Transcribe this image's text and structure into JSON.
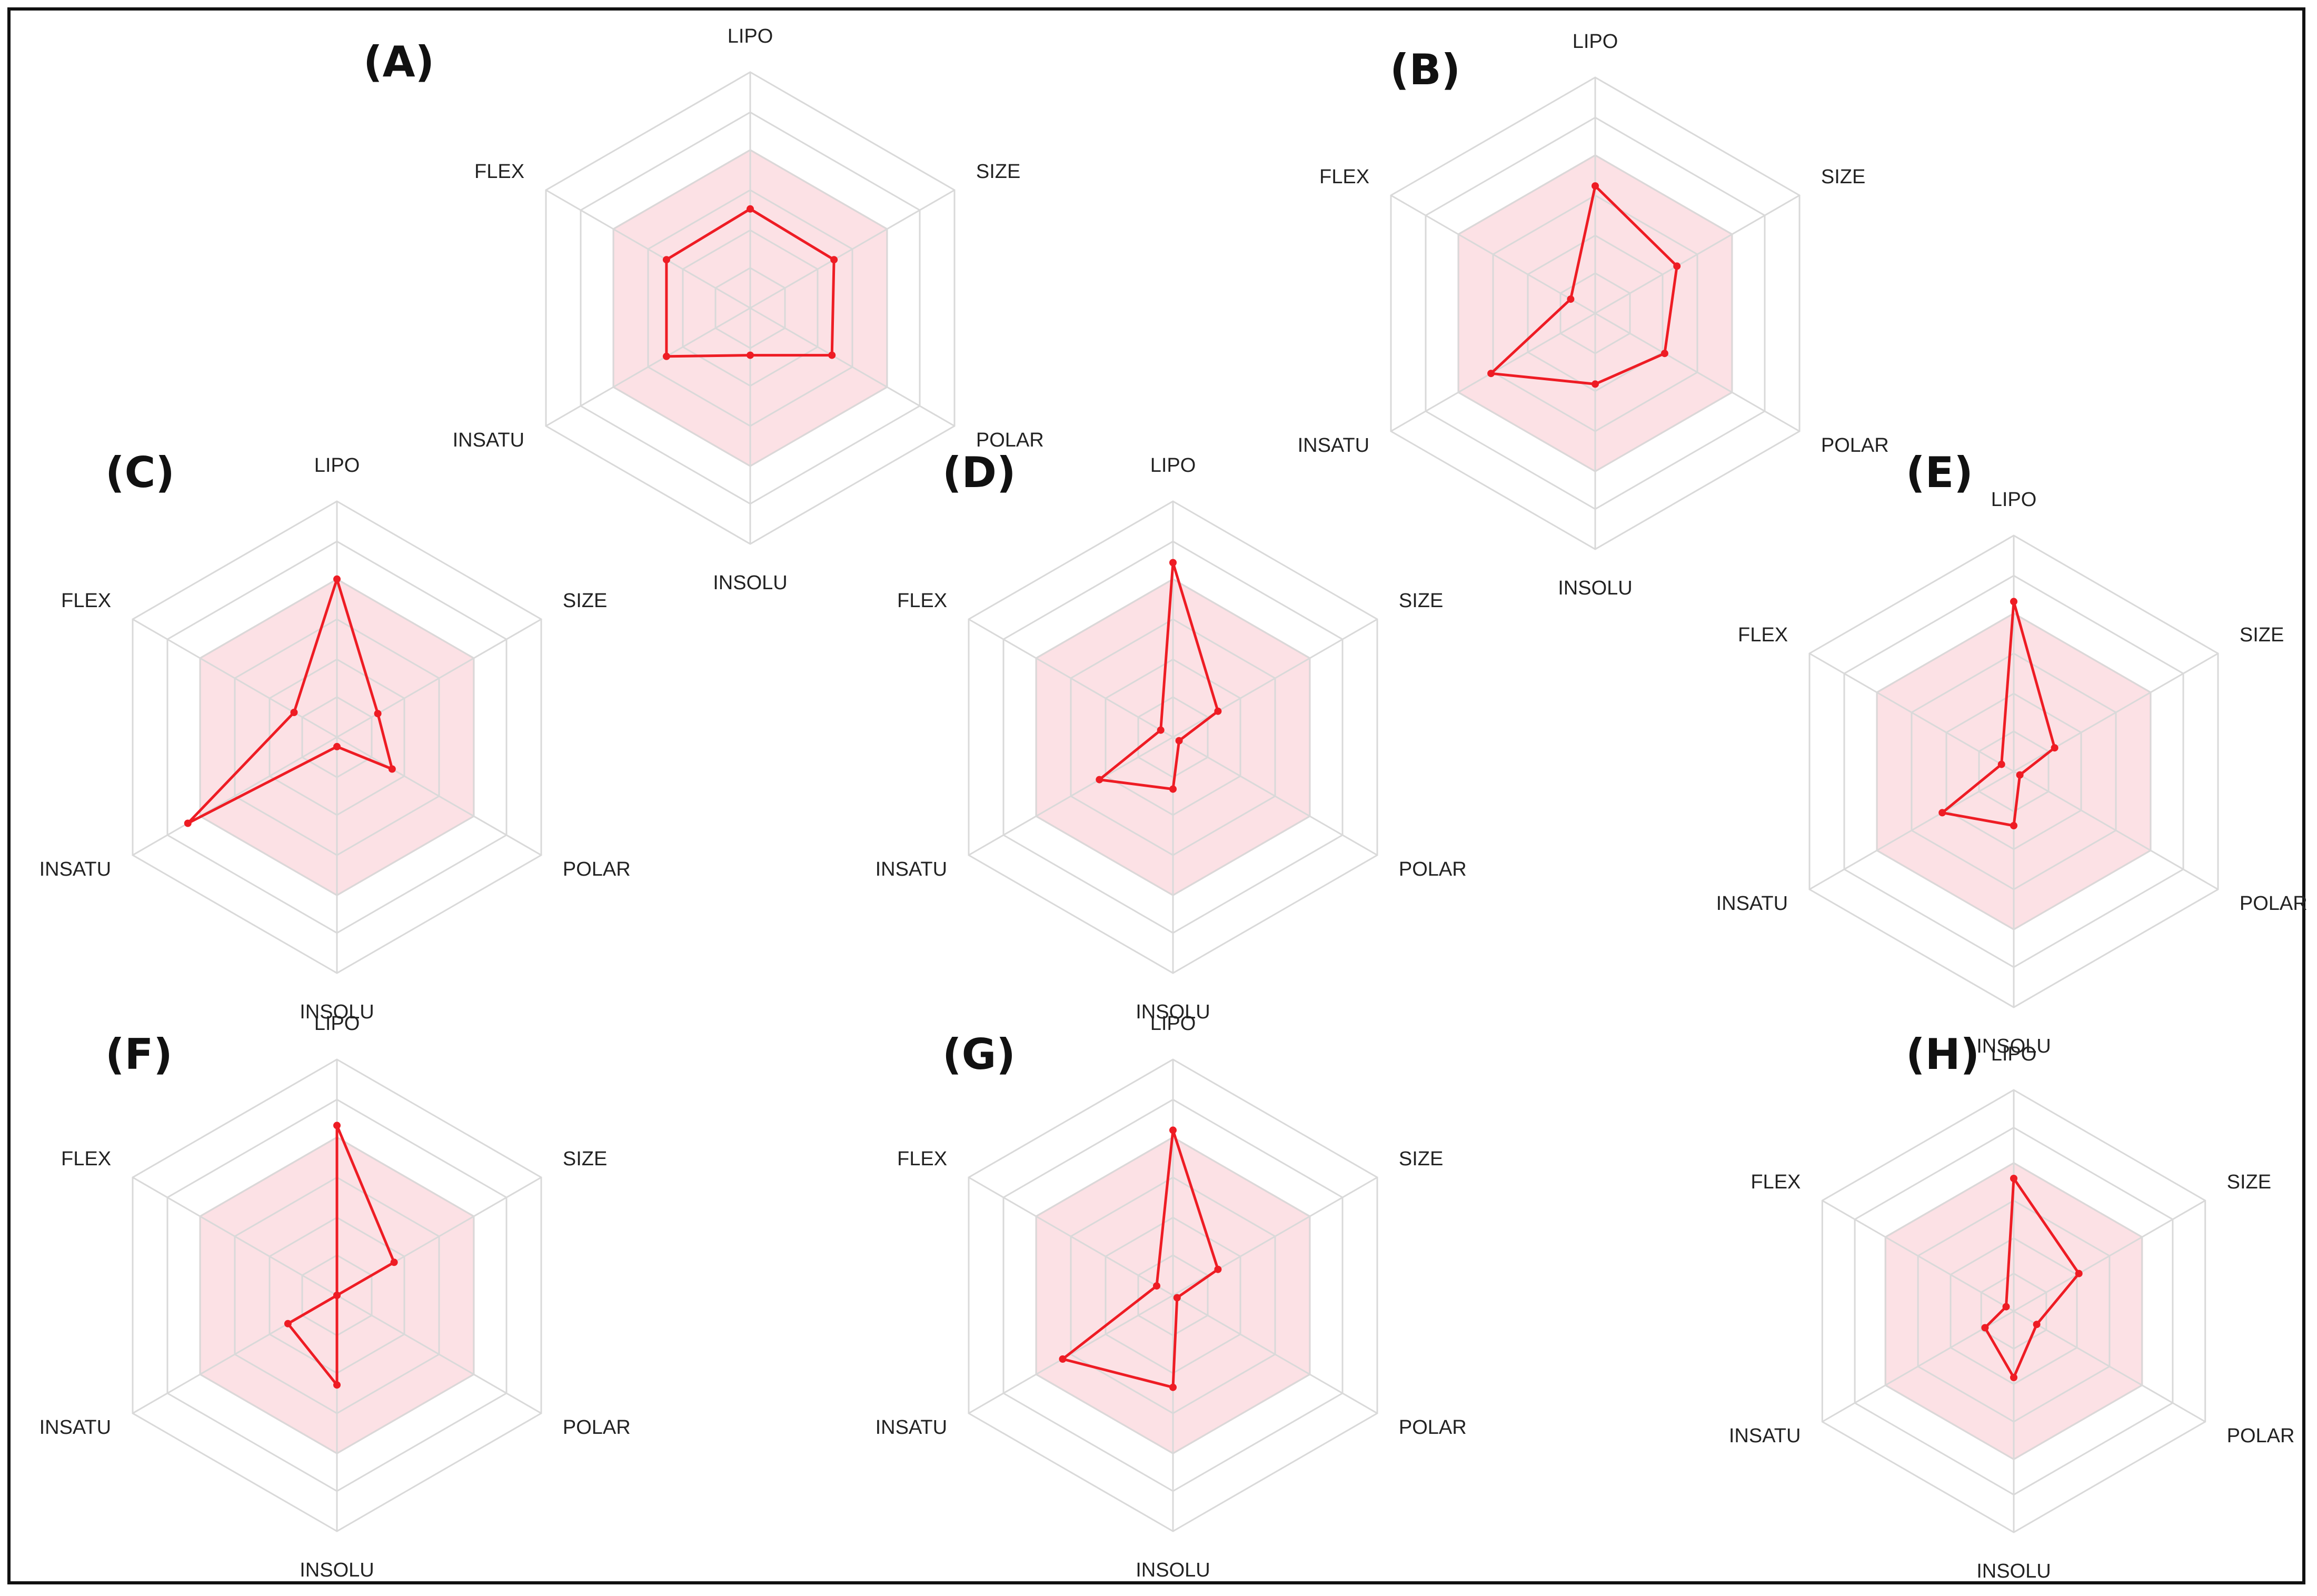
{
  "figure": {
    "description_axes": [
      "LIPO",
      "SIZE",
      "POLAR",
      "INSOLU",
      "INSATU",
      "FLEX"
    ],
    "colors": {
      "frame": "#111111",
      "grid": "#d9d9d9",
      "optimal_fill": "#f9c9cf",
      "optimal_stroke": "#f4a9b1",
      "series": "#ee1c24",
      "text": "#222222"
    }
  },
  "chart_data": [
    {
      "type": "radar",
      "title": "(A)",
      "axes": [
        "LIPO",
        "SIZE",
        "POLAR",
        "INSOLU",
        "INSATU",
        "FLEX"
      ],
      "rmax": 1,
      "optimal_range": 0.67,
      "values": [
        0.42,
        0.41,
        0.4,
        0.2,
        0.41,
        0.41
      ]
    },
    {
      "type": "radar",
      "title": "(B)",
      "axes": [
        "LIPO",
        "SIZE",
        "POLAR",
        "INSOLU",
        "INSATU",
        "FLEX"
      ],
      "rmax": 1,
      "optimal_range": 0.67,
      "values": [
        0.54,
        0.4,
        0.34,
        0.3,
        0.51,
        0.12
      ]
    },
    {
      "type": "radar",
      "title": "(C)",
      "axes": [
        "LIPO",
        "SIZE",
        "POLAR",
        "INSOLU",
        "INSATU",
        "FLEX"
      ],
      "rmax": 1,
      "optimal_range": 0.67,
      "values": [
        0.67,
        0.2,
        0.27,
        0.04,
        0.73,
        0.21
      ]
    },
    {
      "type": "radar",
      "title": "(D)",
      "axes": [
        "LIPO",
        "SIZE",
        "POLAR",
        "INSOLU",
        "INSATU",
        "FLEX"
      ],
      "rmax": 1,
      "optimal_range": 0.67,
      "values": [
        0.74,
        0.22,
        0.03,
        0.22,
        0.36,
        0.06
      ]
    },
    {
      "type": "radar",
      "title": "(E)",
      "axes": [
        "LIPO",
        "SIZE",
        "POLAR",
        "INSOLU",
        "INSATU",
        "FLEX"
      ],
      "rmax": 1,
      "optimal_range": 0.67,
      "values": [
        0.72,
        0.2,
        0.03,
        0.23,
        0.35,
        0.06
      ]
    },
    {
      "type": "radar",
      "title": "(F)",
      "axes": [
        "LIPO",
        "SIZE",
        "POLAR",
        "INSOLU",
        "INSATU",
        "FLEX"
      ],
      "rmax": 1,
      "optimal_range": 0.67,
      "values": [
        0.72,
        0.28,
        0.0,
        0.38,
        0.24,
        0.0
      ]
    },
    {
      "type": "radar",
      "title": "(G)",
      "axes": [
        "LIPO",
        "SIZE",
        "POLAR",
        "INSOLU",
        "INSATU",
        "FLEX"
      ],
      "rmax": 1,
      "optimal_range": 0.67,
      "values": [
        0.7,
        0.22,
        0.02,
        0.39,
        0.54,
        0.08
      ]
    },
    {
      "type": "radar",
      "title": "(H)",
      "axes": [
        "LIPO",
        "SIZE",
        "POLAR",
        "INSOLU",
        "INSATU",
        "FLEX"
      ],
      "rmax": 1,
      "optimal_range": 0.67,
      "values": [
        0.6,
        0.34,
        0.12,
        0.3,
        0.15,
        0.04
      ]
    }
  ]
}
